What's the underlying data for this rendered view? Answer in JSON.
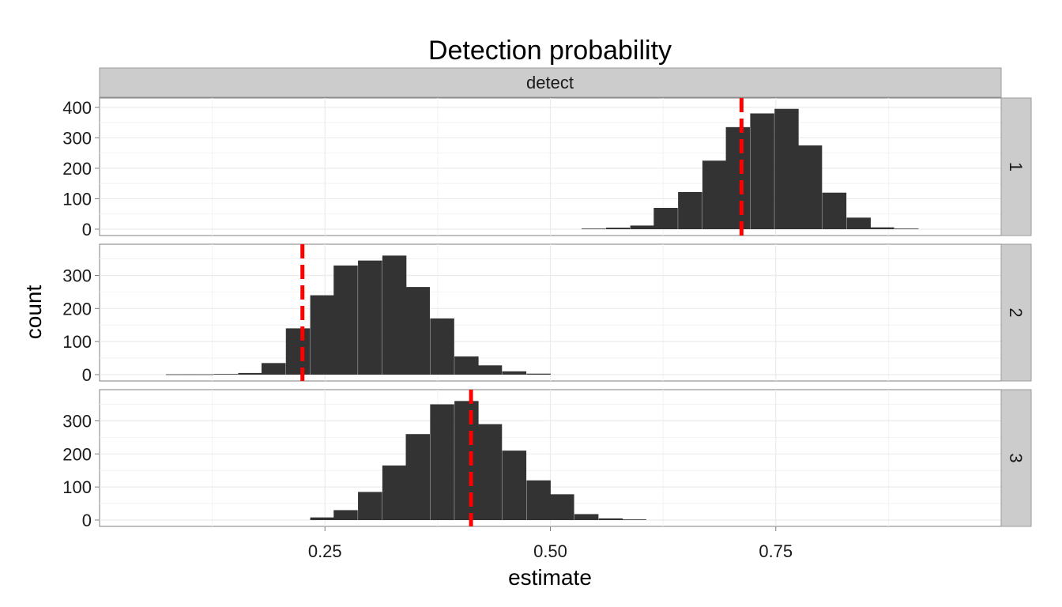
{
  "chart_data": {
    "type": "bar",
    "subtype": "faceted histogram",
    "title": "Detection probability",
    "xlabel": "estimate",
    "ylabel": "count",
    "column_strip": "detect",
    "xlim": [
      0.0,
      1.0
    ],
    "x_ticks": [
      0.25,
      0.5,
      0.75
    ],
    "x_tick_labels": [
      "0.25",
      "0.50",
      "0.75"
    ],
    "bar_color": "#333333",
    "reference_line_color": "#ff0000",
    "panel_background": "#ffffff",
    "strip_background": "#cccccc",
    "grid_color": "#ebebeb",
    "grid": true,
    "legend": "none",
    "bin_width": 0.0267,
    "facets": [
      {
        "label": "1",
        "ylim": [
          0,
          415
        ],
        "y_ticks": [
          0,
          100,
          200,
          300,
          400
        ],
        "reference_x": 0.712,
        "bins": [
          {
            "x": 0.548,
            "count": 2
          },
          {
            "x": 0.575,
            "count": 5
          },
          {
            "x": 0.602,
            "count": 12
          },
          {
            "x": 0.628,
            "count": 70
          },
          {
            "x": 0.655,
            "count": 122
          },
          {
            "x": 0.682,
            "count": 225
          },
          {
            "x": 0.708,
            "count": 335
          },
          {
            "x": 0.735,
            "count": 380
          },
          {
            "x": 0.762,
            "count": 395
          },
          {
            "x": 0.788,
            "count": 275
          },
          {
            "x": 0.815,
            "count": 120
          },
          {
            "x": 0.842,
            "count": 38
          },
          {
            "x": 0.868,
            "count": 6
          },
          {
            "x": 0.895,
            "count": 2
          }
        ]
      },
      {
        "label": "2",
        "ylim": [
          0,
          380
        ],
        "y_ticks": [
          0,
          100,
          200,
          300
        ],
        "reference_x": 0.225,
        "bins": [
          {
            "x": 0.087,
            "count": 1
          },
          {
            "x": 0.113,
            "count": 1
          },
          {
            "x": 0.14,
            "count": 2
          },
          {
            "x": 0.167,
            "count": 5
          },
          {
            "x": 0.193,
            "count": 35
          },
          {
            "x": 0.22,
            "count": 140
          },
          {
            "x": 0.247,
            "count": 240
          },
          {
            "x": 0.273,
            "count": 330
          },
          {
            "x": 0.3,
            "count": 345
          },
          {
            "x": 0.327,
            "count": 360
          },
          {
            "x": 0.353,
            "count": 265
          },
          {
            "x": 0.38,
            "count": 170
          },
          {
            "x": 0.407,
            "count": 55
          },
          {
            "x": 0.433,
            "count": 28
          },
          {
            "x": 0.46,
            "count": 10
          },
          {
            "x": 0.487,
            "count": 3
          }
        ]
      },
      {
        "label": "3",
        "ylim": [
          0,
          380
        ],
        "y_ticks": [
          0,
          100,
          200,
          300
        ],
        "reference_x": 0.412,
        "bins": [
          {
            "x": 0.247,
            "count": 8
          },
          {
            "x": 0.273,
            "count": 30
          },
          {
            "x": 0.3,
            "count": 85
          },
          {
            "x": 0.327,
            "count": 165
          },
          {
            "x": 0.353,
            "count": 260
          },
          {
            "x": 0.38,
            "count": 350
          },
          {
            "x": 0.407,
            "count": 360
          },
          {
            "x": 0.433,
            "count": 290
          },
          {
            "x": 0.46,
            "count": 210
          },
          {
            "x": 0.487,
            "count": 120
          },
          {
            "x": 0.513,
            "count": 78
          },
          {
            "x": 0.54,
            "count": 18
          },
          {
            "x": 0.567,
            "count": 5
          },
          {
            "x": 0.593,
            "count": 2
          }
        ]
      }
    ]
  }
}
